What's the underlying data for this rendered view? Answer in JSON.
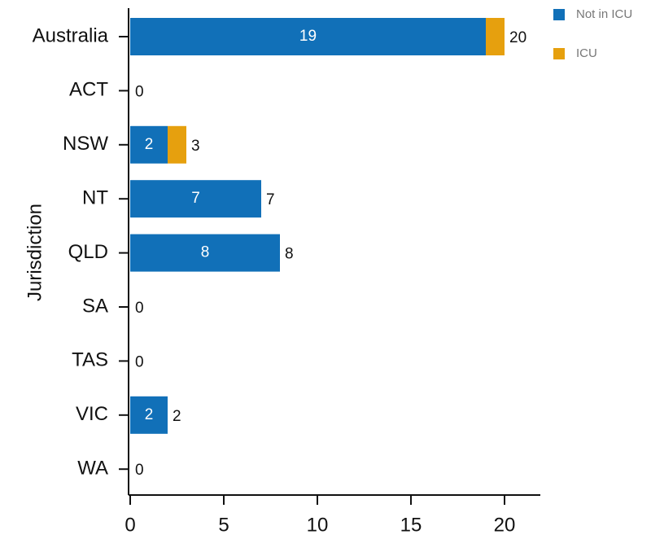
{
  "chart_data": {
    "type": "stacked-barh",
    "y_label": "Jurisdiction",
    "categories": [
      "Australia",
      "ACT",
      "NSW",
      "NT",
      "QLD",
      "SA",
      "TAS",
      "VIC",
      "WA"
    ],
    "series": [
      {
        "name": "Not in ICU",
        "color": "#1170b8",
        "values": [
          19,
          0,
          2,
          7,
          8,
          0,
          0,
          2,
          0
        ]
      },
      {
        "name": "ICU",
        "color": "#e6a00e",
        "values": [
          1,
          0,
          1,
          0,
          0,
          0,
          0,
          0,
          0
        ]
      }
    ],
    "totals": [
      20,
      0,
      3,
      7,
      8,
      0,
      0,
      2,
      0
    ],
    "xlim": [
      0,
      22
    ],
    "xticks": [
      0,
      5,
      10,
      15,
      20
    ],
    "legend": "top-right"
  }
}
